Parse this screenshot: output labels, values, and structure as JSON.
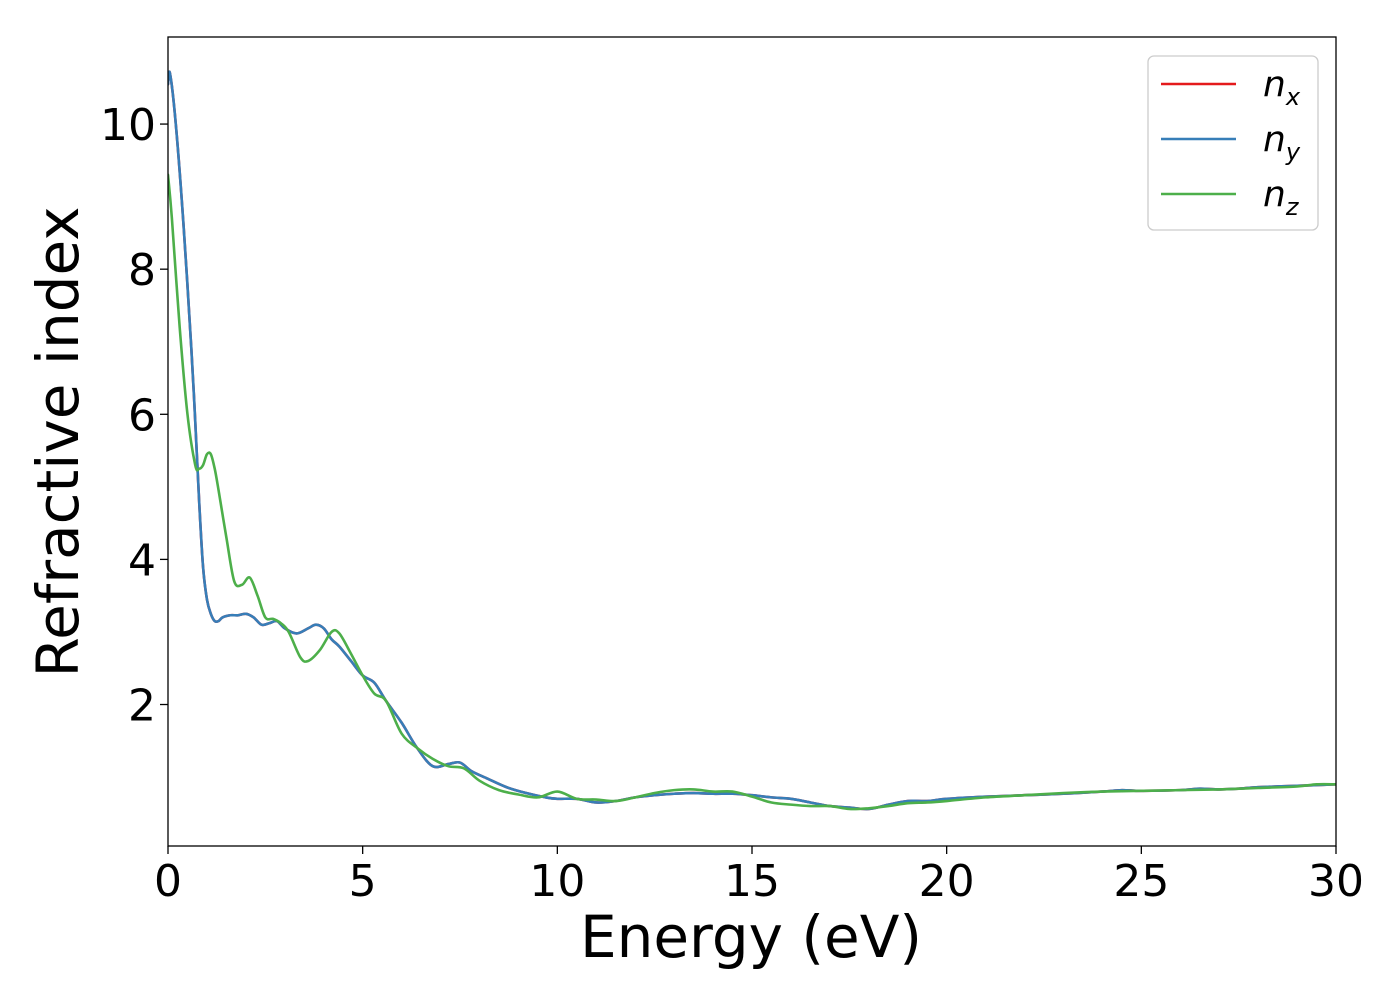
{
  "chart_data": {
    "type": "line",
    "title": "",
    "xlabel": "Energy (eV)",
    "ylabel": "Refractive index",
    "xlim": [
      0,
      30
    ],
    "ylim": [
      0.05,
      11.2
    ],
    "xticks": [
      0,
      5,
      10,
      15,
      20,
      25,
      30
    ],
    "yticks": [
      2,
      4,
      6,
      8,
      10
    ],
    "grid": false,
    "legend_position": "top-right",
    "series": [
      {
        "name": "n",
        "subscript": "x",
        "color": "#e41a1c",
        "x": [
          0,
          0.05,
          0.2,
          0.4,
          0.6,
          0.7,
          0.8,
          0.9,
          1.0,
          1.1,
          1.2,
          1.3,
          1.4,
          1.6,
          1.8,
          2.0,
          2.2,
          2.4,
          2.6,
          2.8,
          3.0,
          3.3,
          3.6,
          3.8,
          4.0,
          4.2,
          4.4,
          4.7,
          5.0,
          5.3,
          5.6,
          6.0,
          6.4,
          6.8,
          7.2,
          7.5,
          7.8,
          8.2,
          8.7,
          9.2,
          9.7,
          10.0,
          10.5,
          11.0,
          11.5,
          12.0,
          12.5,
          13.0,
          13.5,
          14.0,
          14.5,
          15.0,
          15.5,
          16.0,
          16.5,
          17.0,
          17.5,
          18.0,
          18.5,
          19.0,
          19.5,
          20.0,
          21.0,
          22.0,
          23.0,
          24.0,
          24.5,
          25.0,
          26.0,
          26.5,
          27.0,
          27.5,
          28.0,
          29.0,
          29.5,
          30.0
        ],
        "y": [
          10.55,
          10.7,
          10.0,
          8.6,
          6.9,
          5.9,
          4.8,
          3.9,
          3.45,
          3.25,
          3.15,
          3.15,
          3.2,
          3.23,
          3.23,
          3.25,
          3.2,
          3.1,
          3.12,
          3.15,
          3.05,
          2.98,
          3.05,
          3.1,
          3.05,
          2.9,
          2.8,
          2.6,
          2.4,
          2.3,
          2.05,
          1.75,
          1.4,
          1.15,
          1.18,
          1.2,
          1.08,
          0.98,
          0.86,
          0.78,
          0.72,
          0.7,
          0.7,
          0.65,
          0.67,
          0.72,
          0.75,
          0.77,
          0.78,
          0.77,
          0.77,
          0.75,
          0.72,
          0.7,
          0.65,
          0.6,
          0.58,
          0.56,
          0.62,
          0.67,
          0.67,
          0.7,
          0.73,
          0.75,
          0.77,
          0.8,
          0.82,
          0.81,
          0.82,
          0.84,
          0.83,
          0.84,
          0.86,
          0.88,
          0.89,
          0.9
        ]
      },
      {
        "name": "n",
        "subscript": "y",
        "color": "#377eb8",
        "x": [
          0,
          0.05,
          0.2,
          0.4,
          0.6,
          0.7,
          0.8,
          0.9,
          1.0,
          1.1,
          1.2,
          1.3,
          1.4,
          1.6,
          1.8,
          2.0,
          2.2,
          2.4,
          2.6,
          2.8,
          3.0,
          3.3,
          3.6,
          3.8,
          4.0,
          4.2,
          4.4,
          4.7,
          5.0,
          5.3,
          5.6,
          6.0,
          6.4,
          6.8,
          7.2,
          7.5,
          7.8,
          8.2,
          8.7,
          9.2,
          9.7,
          10.0,
          10.5,
          11.0,
          11.5,
          12.0,
          12.5,
          13.0,
          13.5,
          14.0,
          14.5,
          15.0,
          15.5,
          16.0,
          16.5,
          17.0,
          17.5,
          18.0,
          18.5,
          19.0,
          19.5,
          20.0,
          21.0,
          22.0,
          23.0,
          24.0,
          24.5,
          25.0,
          26.0,
          26.5,
          27.0,
          27.5,
          28.0,
          29.0,
          29.5,
          30.0
        ],
        "y": [
          10.55,
          10.7,
          10.0,
          8.6,
          6.9,
          5.9,
          4.8,
          3.9,
          3.45,
          3.25,
          3.15,
          3.15,
          3.2,
          3.23,
          3.23,
          3.25,
          3.2,
          3.1,
          3.12,
          3.15,
          3.05,
          2.98,
          3.05,
          3.1,
          3.05,
          2.9,
          2.8,
          2.6,
          2.4,
          2.3,
          2.05,
          1.75,
          1.4,
          1.15,
          1.18,
          1.2,
          1.08,
          0.98,
          0.86,
          0.78,
          0.72,
          0.7,
          0.7,
          0.65,
          0.67,
          0.72,
          0.75,
          0.77,
          0.78,
          0.77,
          0.77,
          0.75,
          0.72,
          0.7,
          0.65,
          0.6,
          0.58,
          0.56,
          0.62,
          0.67,
          0.67,
          0.7,
          0.73,
          0.75,
          0.77,
          0.8,
          0.82,
          0.81,
          0.82,
          0.84,
          0.83,
          0.84,
          0.86,
          0.88,
          0.89,
          0.9
        ]
      },
      {
        "name": "n",
        "subscript": "z",
        "color": "#4daf4a",
        "x": [
          0,
          0.1,
          0.3,
          0.5,
          0.7,
          0.8,
          0.9,
          1.0,
          1.1,
          1.2,
          1.3,
          1.5,
          1.7,
          1.9,
          2.1,
          2.3,
          2.5,
          2.7,
          2.9,
          3.1,
          3.4,
          3.6,
          3.9,
          4.2,
          4.4,
          4.7,
          5.0,
          5.3,
          5.6,
          6.0,
          6.4,
          6.8,
          7.2,
          7.6,
          8.0,
          8.5,
          9.0,
          9.5,
          10.0,
          10.5,
          11.0,
          11.5,
          12.0,
          12.5,
          13.0,
          13.5,
          14.0,
          14.5,
          15.0,
          15.5,
          16.0,
          16.5,
          17.0,
          17.5,
          18.0,
          18.5,
          19.0,
          19.5,
          20.0,
          21.0,
          22.0,
          23.0,
          24.0,
          25.0,
          26.0,
          27.0,
          28.0,
          29.0,
          29.5,
          30.0
        ],
        "y": [
          9.3,
          8.7,
          7.2,
          6.0,
          5.3,
          5.25,
          5.3,
          5.45,
          5.45,
          5.25,
          4.95,
          4.3,
          3.7,
          3.65,
          3.75,
          3.5,
          3.2,
          3.18,
          3.12,
          3.0,
          2.65,
          2.6,
          2.75,
          3.0,
          2.98,
          2.7,
          2.4,
          2.15,
          2.05,
          1.6,
          1.4,
          1.25,
          1.15,
          1.12,
          0.95,
          0.82,
          0.76,
          0.72,
          0.8,
          0.7,
          0.69,
          0.67,
          0.72,
          0.78,
          0.82,
          0.83,
          0.8,
          0.8,
          0.73,
          0.65,
          0.62,
          0.6,
          0.6,
          0.56,
          0.57,
          0.6,
          0.64,
          0.65,
          0.67,
          0.72,
          0.75,
          0.78,
          0.8,
          0.81,
          0.82,
          0.83,
          0.85,
          0.87,
          0.9,
          0.9
        ]
      }
    ]
  }
}
